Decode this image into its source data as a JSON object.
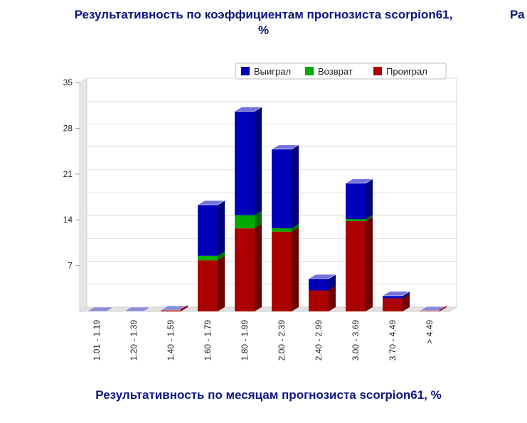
{
  "page": {
    "title": "Результативность по коэффициентам прогнозиста scorpion61,",
    "title_suffix": "%",
    "title_cut": "Ра",
    "bottom_title": "Результативность по месяцам прогнозиста scorpion61, %"
  },
  "chart_data": {
    "type": "bar",
    "stacked": true,
    "three_d": true,
    "categories": [
      "1.01 - 1.19",
      "1.20 - 1.39",
      "1.40 - 1.59",
      "1.60 - 1.79",
      "1.80 - 1.99",
      "2.00 - 2.39",
      "2.40 - 2.99",
      "3.00 - 3.69",
      "3.70 - 4.49",
      "> 4.49"
    ],
    "series": [
      {
        "name": "Проиграл",
        "color": "#aa0000",
        "values": [
          0,
          0,
          0.2,
          7.8,
          12.7,
          12.2,
          3.2,
          13.8,
          2.0,
          0.1
        ]
      },
      {
        "name": "Возврат",
        "color": "#00aa00",
        "values": [
          0,
          0,
          0,
          0.7,
          2.0,
          0.5,
          0,
          0.3,
          0,
          0
        ]
      },
      {
        "name": "Выиграл",
        "color": "#0000bb",
        "values": [
          0,
          0,
          0,
          7.8,
          15.9,
          12.1,
          1.8,
          5.5,
          0.4,
          0
        ]
      }
    ],
    "legend_order": [
      "Выиграл",
      "Возврат",
      "Проиграл"
    ],
    "legend_position": "top-right",
    "ylim": [
      0,
      35
    ],
    "yticks": [
      7,
      14,
      21,
      28,
      35
    ],
    "grid": true
  }
}
